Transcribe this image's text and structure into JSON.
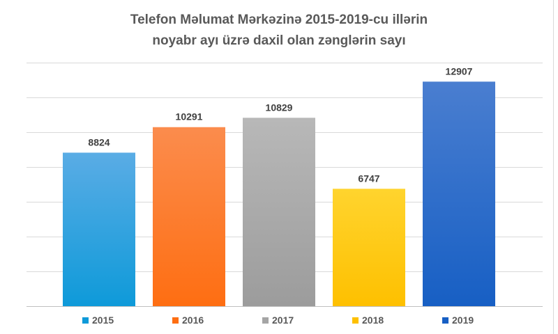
{
  "chart_data": {
    "type": "bar",
    "title_lines": [
      "Telefon Məlumat Mərkəzinə 2015-2019-cu illərin",
      "noyabr ayı üzrə daxil olan zənglərin sayı"
    ],
    "categories": [
      "2015",
      "2016",
      "2017",
      "2018",
      "2019"
    ],
    "values": [
      8824,
      10291,
      10829,
      6747,
      12907
    ],
    "colors": [
      [
        "#5aace5",
        "#0e9ad9"
      ],
      [
        "#fb8c4d",
        "#fe6e12"
      ],
      [
        "#b8b8b8",
        "#9c9c9c"
      ],
      [
        "#ffd42e",
        "#fec000"
      ],
      [
        "#4a7ed0",
        "#175fc4"
      ]
    ],
    "legend_colors": [
      "#0e9ad9",
      "#fe6e12",
      "#a5a5a5",
      "#fec000",
      "#175fc4"
    ],
    "ylim": [
      0,
      14000
    ],
    "gridline_step": 2000,
    "grid": true,
    "legend_position": "bottom"
  }
}
